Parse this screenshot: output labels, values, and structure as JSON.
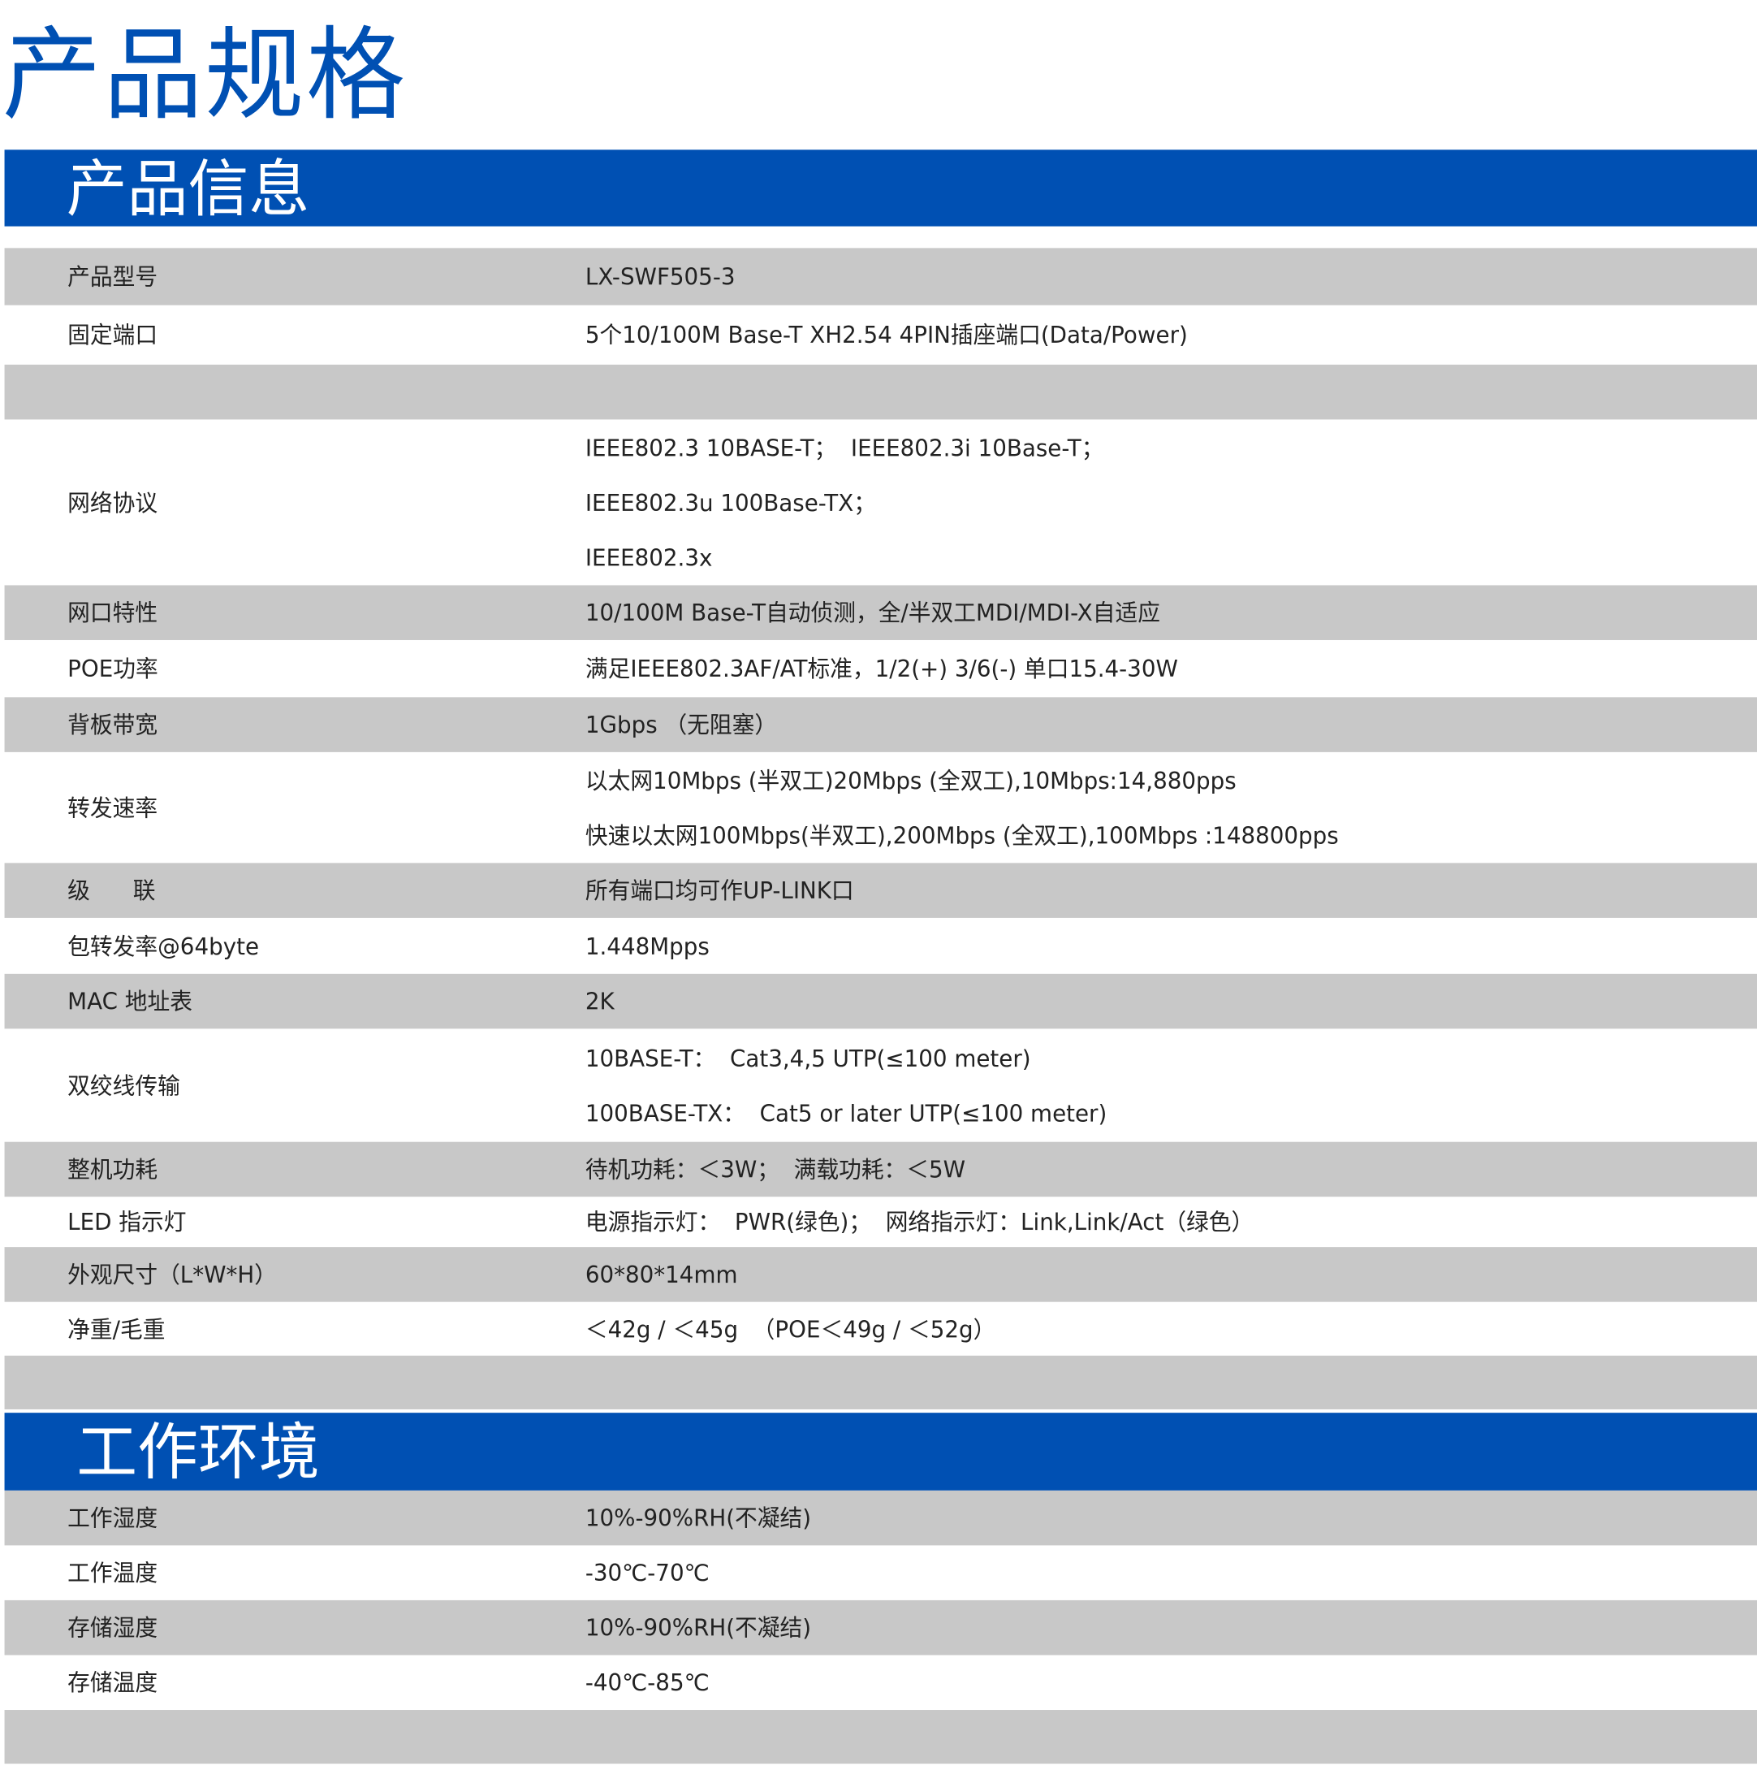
{
  "page_title": "产品规格",
  "sections": [
    {
      "heading": "产品信息",
      "rows": [
        {
          "label": "产品型号",
          "values": [
            "LX-SWF505-3"
          ]
        },
        {
          "label": "固定端口",
          "values": [
            "5个10/100M Base-T XH2.54 4PIN插座端口(Data/Power)"
          ]
        },
        {
          "label": "",
          "values": []
        },
        {
          "label": "网络协议",
          "values": [
            "IEEE802.3 10BASE-T；  IEEE802.3i 10Base-T；",
            "IEEE802.3u 100Base-TX；",
            "IEEE802.3x"
          ]
        },
        {
          "label": "网口特性",
          "values": [
            "10/100M Base-T自动侦测，全/半双工MDI/MDI-X自适应"
          ]
        },
        {
          "label": "POE功率",
          "values": [
            "满足IEEE802.3AF/AT标准，1/2(+) 3/6(-) 单口15.4-30W"
          ]
        },
        {
          "label": "背板带宽",
          "values": [
            "1Gbps （无阻塞）"
          ]
        },
        {
          "label": "转发速率",
          "values": [
            "以太网10Mbps (半双工)20Mbps (全双工),10Mbps:14,880pps",
            "快速以太网100Mbps(半双工),200Mbps (全双工),100Mbps :148800pps"
          ]
        },
        {
          "label": "级      联",
          "values": [
            "所有端口均可作UP-LINK口"
          ]
        },
        {
          "label": "包转发率@64byte",
          "values": [
            "1.448Mpps"
          ]
        },
        {
          "label": "MAC 地址表",
          "values": [
            "2K"
          ]
        },
        {
          "label": "双绞线传输",
          "values": [
            "10BASE-T：  Cat3,4,5 UTP(≤100 meter)",
            "100BASE-TX：  Cat5 or later UTP(≤100 meter)"
          ]
        },
        {
          "label": "整机功耗",
          "values": [
            "待机功耗：＜3W；  满载功耗：＜5W"
          ]
        },
        {
          "label": "LED 指示灯",
          "values": [
            "电源指示灯：  PWR(绿色)；  网络指示灯：Link,Link/Act（绿色）"
          ]
        },
        {
          "label": "外观尺寸（L*W*H）",
          "values": [
            "60*80*14mm"
          ]
        },
        {
          "label": "净重/毛重",
          "values": [
            "＜42g / ＜45g  （POE＜49g / ＜52g）"
          ]
        },
        {
          "label": "",
          "values": []
        }
      ]
    },
    {
      "heading": "工作环境",
      "rows": [
        {
          "label": "工作湿度",
          "values": [
            "10%-90%RH(不凝结)"
          ]
        },
        {
          "label": "工作温度",
          "values": [
            "-30℃-70℃"
          ]
        },
        {
          "label": "存储湿度",
          "values": [
            "10%-90%RH(不凝结)"
          ]
        },
        {
          "label": "存储温度",
          "values": [
            "-40℃-85℃"
          ]
        },
        {
          "label": "",
          "values": []
        }
      ]
    }
  ],
  "colors": {
    "brand_blue": "#0050b3",
    "row_gray": "#c8c8c8"
  }
}
